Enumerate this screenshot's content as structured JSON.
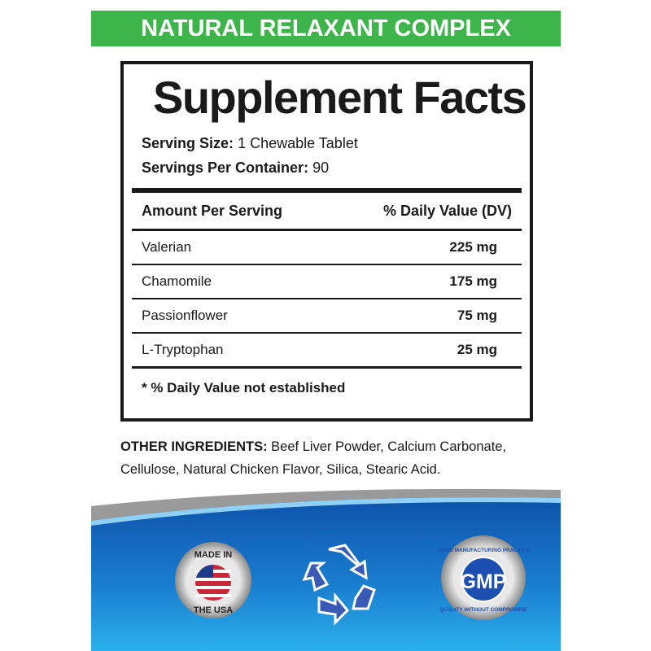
{
  "banner": {
    "text": "NATURAL RELAXANT COMPLEX",
    "color": "#3db54a"
  },
  "facts": {
    "title": "Supplement Facts",
    "serving_size_label": "Serving Size:",
    "serving_size": "1 Chewable Tablet",
    "servings_label": "Servings Per Container:",
    "servings": "90",
    "header_left": "Amount  Per Serving",
    "header_right": "% Daily Value (DV)",
    "rows": [
      {
        "name": "Valerian",
        "amount": "225 mg"
      },
      {
        "name": "Chamomile",
        "amount": "175 mg"
      },
      {
        "name": "Passionflower",
        "amount": "75 mg"
      },
      {
        "name": "L-Tryptophan",
        "amount": "25 mg"
      }
    ],
    "footnote": "* % Daily Value not established"
  },
  "other": {
    "label": "OTHER INGREDIENTS:",
    "text": " Beef Liver Powder, Calcium Carbonate, Cellulose, Natural Chicken Flavor, Silica, Stearic Acid."
  },
  "badges": {
    "usa": {
      "icon": "made-in-usa-seal",
      "top": "MADE IN",
      "bottom": "THE USA"
    },
    "recycle": {
      "icon": "recycle-icon"
    },
    "gmp": {
      "icon": "gmp-seal",
      "center": "GMP",
      "top": "GOOD MANUFACTURING PRACTICE",
      "bottom": "QUALITY WITHOUT COMPROMISE"
    }
  },
  "colors": {
    "blue": "#1565c0",
    "light_blue": "#29a8e8"
  }
}
